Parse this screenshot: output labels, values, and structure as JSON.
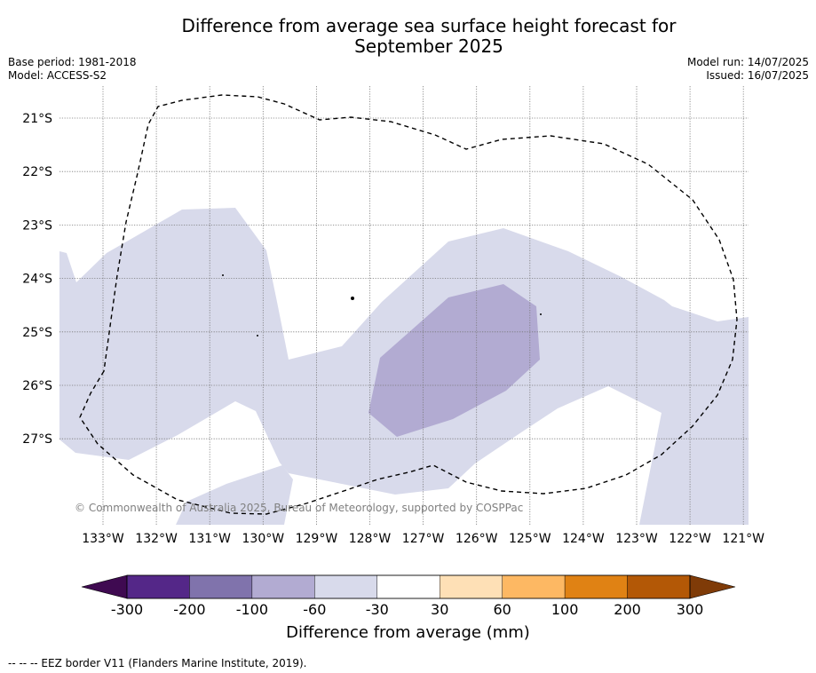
{
  "title_line1": "Difference from average sea surface height forecast for",
  "title_line2": "September 2025",
  "base_period": "Base period: 1981-2018",
  "model": "Model: ACCESS-S2",
  "model_run": "Model run: 14/07/2025",
  "issued": "Issued: 16/07/2025",
  "copyright": "© Commonwealth of Australia 2025, Bureau of Meteorology, supported by COSPPac",
  "lat_labels": [
    "21°S",
    "22°S",
    "23°S",
    "24°S",
    "25°S",
    "26°S",
    "27°S"
  ],
  "lon_labels": [
    "133°W",
    "132°W",
    "131°W",
    "130°W",
    "129°W",
    "128°W",
    "127°W",
    "126°W",
    "125°W",
    "124°W",
    "123°W",
    "122°W",
    "121°W"
  ],
  "colorbar": {
    "title": "Difference from average (mm)",
    "tick_labels": [
      "-300",
      "-200",
      "-100",
      "-60",
      "-30",
      "30",
      "60",
      "100",
      "200",
      "300"
    ],
    "under_color": "#3f0a51",
    "over_color": "#7f3b08",
    "colors": [
      "#542788",
      "#8073ac",
      "#b2abd2",
      "#d8daeb",
      "#ffffff",
      "#fee0b6",
      "#fdb863",
      "#e08214",
      "#b35806"
    ]
  },
  "footnote": "-- -- -- EEZ border V11 (Flanders Marine Institute, 2019).",
  "region_colors": {
    "light": "#d8daeb",
    "medium": "#b2abd2"
  }
}
